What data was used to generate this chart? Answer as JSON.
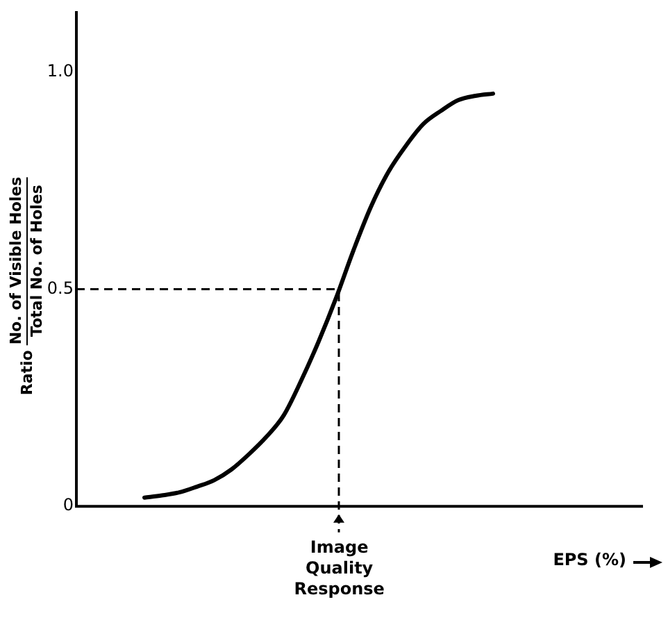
{
  "chart_data": {
    "type": "line",
    "ylabel": "Ratio",
    "xlabel": "EPS (%)",
    "categories": [
      null,
      null,
      null,
      null,
      null,
      null,
      null,
      null,
      null,
      null,
      null,
      null,
      null,
      null,
      null,
      null,
      null,
      null,
      null,
      null,
      null
    ],
    "series": [
      {
        "color": "#000000",
        "values": [
          0.02,
          0.025,
          0.032,
          0.045,
          0.06,
          0.085,
          0.12,
          0.16,
          0.21,
          0.29,
          0.38,
          0.48,
          0.59,
          0.69,
          0.77,
          0.83,
          0.88,
          0.91,
          0.935,
          0.945,
          0.95
        ]
      }
    ],
    "ylim": [
      0,
      1.14
    ],
    "yticks": [
      0,
      0.5,
      {
        "value": 1,
        "label": "1.0"
      }
    ],
    "ref_lines": [
      {
        "axis": "y",
        "value": 0.5,
        "line_style": "dashed",
        "color": "#000000"
      }
    ],
    "annotations": [
      "No. of Visible Holes",
      "Total No. of Holes",
      "Image Quality Response"
    ],
    "grid": false,
    "legend": false,
    "marker": "none",
    "line_style": "solid"
  }
}
